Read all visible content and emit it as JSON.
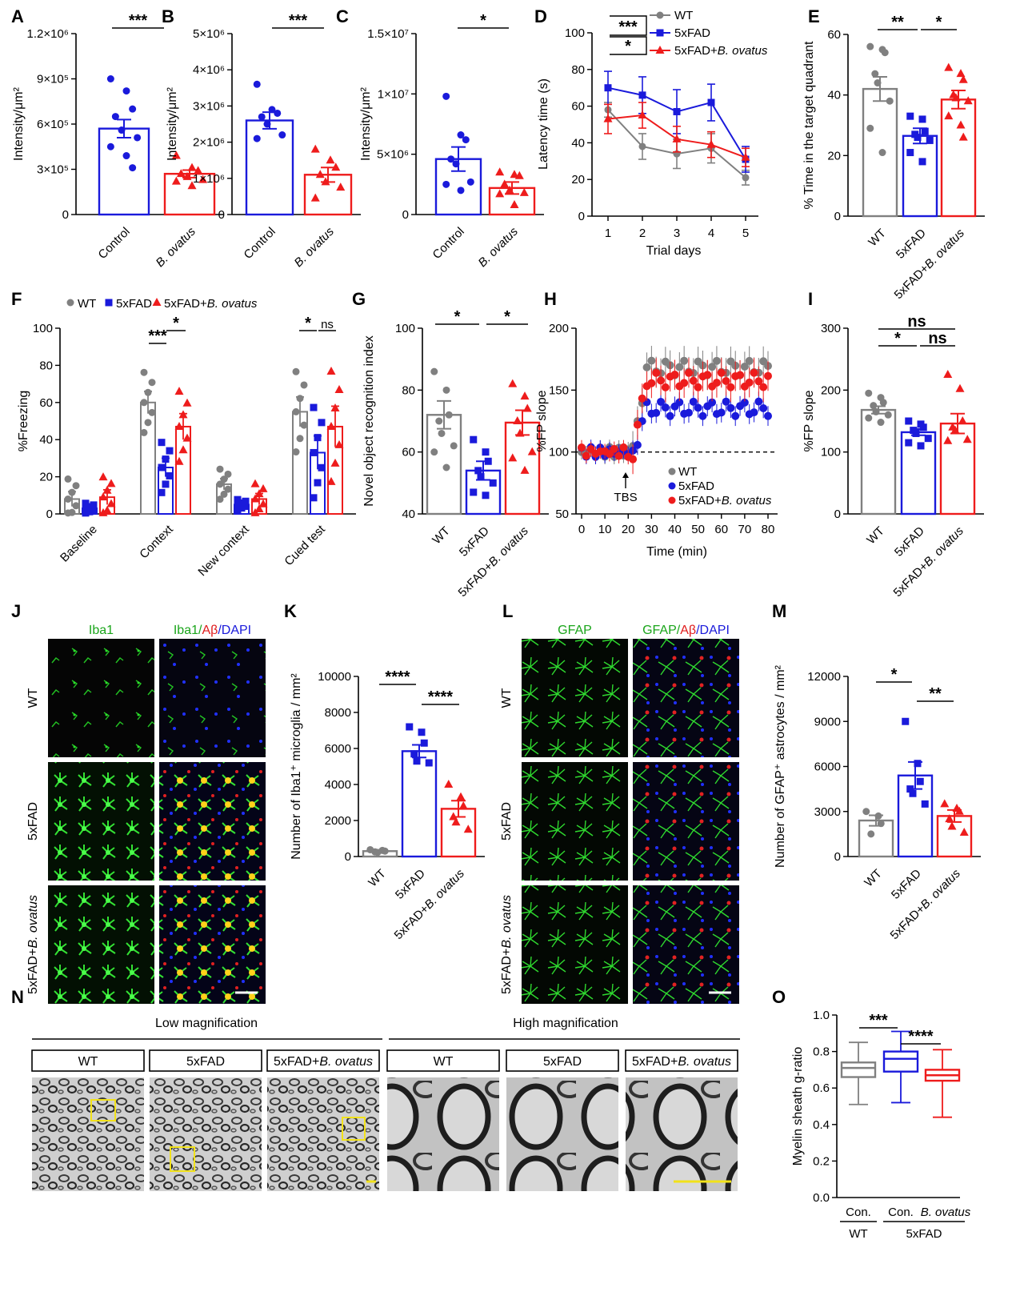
{
  "colors": {
    "WT": "#808080",
    "5xFAD": "#1a1adb",
    "5xFAD+B. ovatus": "#ee1c1c",
    "Control": "#1a1adb",
    "B. ovatus": "#ee1c1c"
  },
  "chart_data": [
    {
      "id": "A",
      "type": "bar",
      "categories": [
        "Control",
        "B. ovatus"
      ],
      "values": [
        570000,
        270000
      ],
      "sem": [
        60000,
        25000
      ],
      "points": [
        [
          900000,
          820000,
          700000,
          650000,
          560000,
          510000,
          450000,
          390000,
          310000
        ],
        [
          390000,
          310000,
          290000,
          270000,
          250000,
          230000,
          220000,
          190000
        ]
      ],
      "ylabel": "Intensity/μm²",
      "ylim": [
        0,
        1200000
      ],
      "yticks": [
        "0",
        "3×10⁵",
        "6×10⁵",
        "9×10⁵",
        "1.2×10⁶"
      ],
      "sig": [
        {
          "label": "***"
        }
      ]
    },
    {
      "id": "B",
      "type": "bar",
      "categories": [
        "Control",
        "B. ovatus"
      ],
      "values": [
        2600000,
        1100000
      ],
      "sem": [
        230000,
        200000
      ],
      "points": [
        [
          3600000,
          2900000,
          2800000,
          2700000,
          2500000,
          2200000,
          2100000
        ],
        [
          1800000,
          1500000,
          1300000,
          1100000,
          900000,
          750000,
          450000
        ]
      ],
      "ylabel": "Intensity/μm²",
      "ylim": [
        0,
        5000000
      ],
      "yticks": [
        "0",
        "1×10⁶",
        "2×10⁶",
        "3×10⁶",
        "4×10⁶",
        "5×10⁶"
      ],
      "sig": [
        {
          "label": "***"
        }
      ]
    },
    {
      "id": "C",
      "type": "bar",
      "categories": [
        "Control",
        "B. ovatus"
      ],
      "values": [
        4600000,
        2200000
      ],
      "sem": [
        1000000,
        500000
      ],
      "points": [
        [
          9800000,
          6600000,
          6200000,
          4600000,
          4200000,
          2700000,
          2500000,
          2000000
        ],
        [
          3500000,
          3300000,
          3200000,
          2500000,
          2000000,
          1800000,
          1700000,
          800000
        ]
      ],
      "ylabel": "Intensity/μm²",
      "ylim": [
        0,
        15000000
      ],
      "yticks": [
        "0",
        "5×10⁶",
        "1×10⁷",
        "1.5×10⁷"
      ],
      "sig": [
        {
          "label": "*"
        }
      ]
    },
    {
      "id": "D",
      "type": "line",
      "xlabel": "Trial days",
      "ylabel": "Latency time (s)",
      "x": [
        1,
        2,
        3,
        4,
        5
      ],
      "ylim": [
        0,
        100
      ],
      "yticks": [
        "0",
        "20",
        "40",
        "60",
        "80",
        "100"
      ],
      "series": [
        {
          "name": "WT",
          "values": [
            58,
            38,
            34,
            37,
            21
          ],
          "err": [
            4,
            7,
            8,
            8,
            4
          ],
          "marker": "circle"
        },
        {
          "name": "5xFAD",
          "values": [
            70,
            66,
            57,
            62,
            31
          ],
          "err": [
            9,
            10,
            12,
            10,
            7
          ],
          "marker": "square"
        },
        {
          "name": "5xFAD+B. ovatus",
          "values": [
            53,
            55,
            42,
            39,
            32
          ],
          "err": [
            8,
            7,
            7,
            7,
            5
          ],
          "marker": "triangle"
        }
      ],
      "sig": [
        {
          "label": "***"
        },
        {
          "label": "*"
        }
      ]
    },
    {
      "id": "E",
      "type": "bar",
      "categories": [
        "WT",
        "5xFAD",
        "5xFAD+B. ovatus"
      ],
      "values": [
        42,
        26.5,
        38.5
      ],
      "sem": [
        4,
        2.5,
        3
      ],
      "ylim": [
        0,
        60
      ],
      "ylabel": "% Time  in the target quadrant",
      "yticks": [
        "0",
        "20",
        "40",
        "60"
      ],
      "points": [
        [
          56,
          55,
          54,
          47,
          44,
          38,
          29,
          21
        ],
        [
          33,
          32,
          28,
          27,
          26,
          25,
          21,
          18
        ],
        [
          49,
          47,
          45,
          40,
          39,
          38,
          33,
          30,
          26
        ]
      ],
      "sig": [
        {
          "label": "**"
        },
        {
          "label": "*"
        }
      ]
    },
    {
      "id": "F",
      "type": "bar",
      "categories": [
        "Baseline",
        "Context",
        "New context",
        "Cued test"
      ],
      "ylabel": "%Freezing",
      "ylim": [
        0,
        100
      ],
      "yticks": [
        "0",
        "20",
        "40",
        "60",
        "80",
        "100"
      ],
      "legend": [
        "WT",
        "5xFAD",
        "5xFAD+B. ovatus"
      ],
      "series": [
        {
          "name": "WT",
          "values": [
            8,
            60,
            16,
            55
          ],
          "sem": [
            4,
            6,
            3,
            8
          ]
        },
        {
          "name": "5xFAD",
          "values": [
            3,
            25,
            5,
            33
          ],
          "sem": [
            1,
            5,
            1,
            9
          ]
        },
        {
          "name": "5xFAD+B. ovatus",
          "values": [
            9,
            47,
            8,
            47
          ],
          "sem": [
            4,
            7,
            3,
            11
          ]
        }
      ],
      "sig": [
        {
          "label": "***"
        },
        {
          "label": "*"
        },
        {
          "label": "*"
        },
        {
          "label": "ns"
        }
      ]
    },
    {
      "id": "G",
      "type": "bar",
      "categories": [
        "WT",
        "5xFAD",
        "5xFAD+B. ovatus"
      ],
      "values": [
        72,
        54,
        69.5
      ],
      "sem": [
        4.5,
        3,
        4
      ],
      "ylabel": "Novel object recognition index",
      "ylim": [
        40,
        100
      ],
      "yticks": [
        "40",
        "60",
        "80",
        "100"
      ],
      "points": [
        [
          86,
          80,
          72,
          70,
          66,
          62,
          60,
          55
        ],
        [
          64,
          60,
          57,
          54,
          52,
          50,
          47,
          46
        ],
        [
          82,
          78,
          74,
          70,
          66,
          60,
          58,
          54
        ]
      ],
      "sig": [
        {
          "label": "*"
        },
        {
          "label": "*"
        }
      ]
    },
    {
      "id": "H",
      "type": "scatter",
      "xlabel": "Time (min)",
      "ylabel": "%FP slope",
      "xlim": [
        0,
        80
      ],
      "ylim": [
        50,
        200
      ],
      "xticks": [
        "0",
        "10",
        "20",
        "30",
        "40",
        "50",
        "60",
        "70",
        "80"
      ],
      "yticks": [
        "50",
        "100",
        "150",
        "200"
      ],
      "annotation": "TBS",
      "baseline": 100,
      "legend": [
        "WT",
        "5xFAD",
        "5xFAD+B. ovatus"
      ],
      "series": [
        {
          "name": "WT",
          "pre": 100,
          "post": 168,
          "err": 15
        },
        {
          "name": "5xFAD",
          "pre": 100,
          "post": 135,
          "err": 10
        },
        {
          "name": "5xFAD+B. ovatus",
          "pre": 100,
          "post": 158,
          "err": 15
        }
      ]
    },
    {
      "id": "I",
      "type": "bar",
      "categories": [
        "WT",
        "5xFAD",
        "5xFAD+B. ovatus"
      ],
      "values": [
        168,
        132,
        146
      ],
      "sem": [
        6,
        5,
        16
      ],
      "ylabel": "%FP slope",
      "ylim": [
        0,
        300
      ],
      "yticks": [
        "0",
        "100",
        "200",
        "300"
      ],
      "points": [
        [
          195,
          188,
          180,
          175,
          165,
          160,
          155,
          148
        ],
        [
          150,
          145,
          140,
          135,
          130,
          122,
          115,
          110
        ],
        [
          225,
          202,
          150,
          140,
          135,
          120,
          118
        ]
      ],
      "sig": [
        {
          "label": "ns"
        },
        {
          "label": "*"
        },
        {
          "label": "ns"
        }
      ]
    },
    {
      "id": "K",
      "type": "bar",
      "categories": [
        "WT",
        "5xFAD",
        "5xFAD+B. ovatus"
      ],
      "values": [
        300,
        5850,
        2650
      ],
      "sem": [
        40,
        350,
        450
      ],
      "ylabel": "Number of Iba1⁺ microglia / mm²",
      "ylim": [
        0,
        10000
      ],
      "yticks": [
        "0",
        "2000",
        "4000",
        "6000",
        "8000",
        "10000"
      ],
      "points": [
        [
          380,
          340,
          300,
          260,
          230
        ],
        [
          7200,
          6900,
          6300,
          5700,
          5300,
          5200
        ],
        [
          4000,
          3300,
          2800,
          2200,
          1900,
          1500
        ]
      ],
      "sig": [
        {
          "label": "****"
        },
        {
          "label": "****"
        }
      ]
    },
    {
      "id": "M",
      "type": "bar",
      "categories": [
        "WT",
        "5xFAD",
        "5xFAD+B. ovatus"
      ],
      "values": [
        2400,
        5400,
        2700
      ],
      "sem": [
        350,
        900,
        400
      ],
      "ylabel": "Number of GFAP⁺ astrocytes / mm²",
      "ylim": [
        0,
        12000
      ],
      "yticks": [
        "0",
        "3000",
        "6000",
        "9000",
        "12000"
      ],
      "points": [
        [
          3000,
          2700,
          2200,
          1500
        ],
        [
          9000,
          6200,
          5000,
          4500,
          4200,
          3500
        ],
        [
          3500,
          3200,
          3000,
          2500,
          2000,
          1600
        ]
      ],
      "sig": [
        {
          "label": "*"
        },
        {
          "label": "**"
        }
      ]
    },
    {
      "id": "O",
      "type": "box",
      "categories": [
        "Con.",
        "Con.",
        "B. ovatus"
      ],
      "groups": [
        "WT",
        "5xFAD"
      ],
      "ylabel": "Myelin sheath g-ratio",
      "ylim": [
        0,
        1
      ],
      "yticks": [
        "0.0",
        "0.2",
        "0.4",
        "0.6",
        "0.8",
        "1.0"
      ],
      "boxes": [
        {
          "min": 0.51,
          "q1": 0.66,
          "median": 0.71,
          "q3": 0.74,
          "max": 0.85,
          "color": "WT"
        },
        {
          "min": 0.52,
          "q1": 0.69,
          "median": 0.76,
          "q3": 0.8,
          "max": 0.91,
          "color": "5xFAD"
        },
        {
          "min": 0.44,
          "q1": 0.64,
          "median": 0.67,
          "q3": 0.7,
          "max": 0.81,
          "color": "5xFAD+B. ovatus"
        }
      ],
      "sig": [
        {
          "label": "***"
        },
        {
          "label": "****"
        }
      ]
    }
  ],
  "panel_letters": [
    "A",
    "B",
    "C",
    "D",
    "E",
    "F",
    "G",
    "H",
    "I",
    "J",
    "K",
    "L",
    "M",
    "N",
    "O"
  ],
  "micrographs": {
    "J": {
      "headers": [
        "Iba1",
        "Iba1/",
        "Aβ",
        "/DAPI"
      ],
      "rows": [
        "WT",
        "5xFAD",
        "5xFAD+",
        "B. ovatus"
      ]
    },
    "L": {
      "headers": [
        "GFAP",
        "GFAP/",
        "Aβ",
        "/DAPI"
      ],
      "rows": [
        "WT",
        "5xFAD",
        "5xFAD+",
        "B. ovatus"
      ]
    },
    "N": {
      "sections": [
        "Low magnification",
        "High magnification"
      ],
      "boxes": [
        "WT",
        "5xFAD",
        "5xFAD+",
        "B. ovatus"
      ]
    }
  }
}
